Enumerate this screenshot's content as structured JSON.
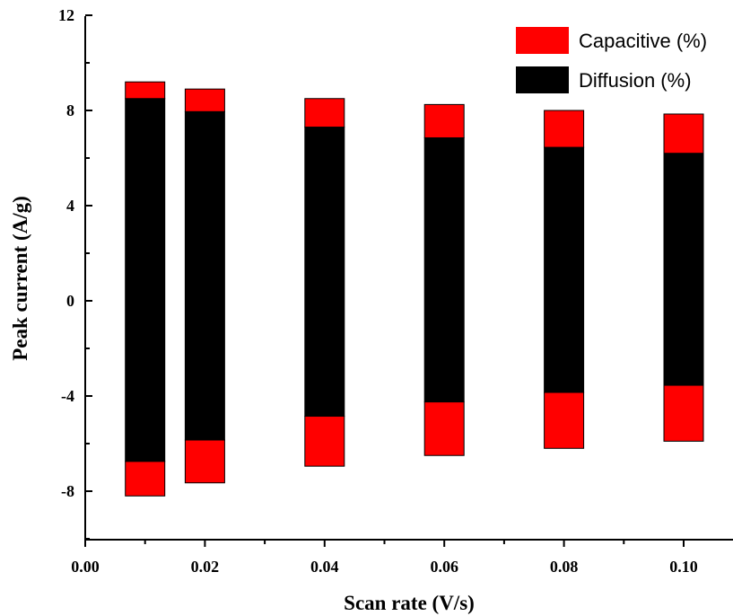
{
  "chart_data": {
    "type": "bar",
    "subtype": "stacked-floating",
    "xlabel": "Scan rate (V/s)",
    "ylabel": "Peak current (A/g)",
    "xlim": [
      0.0,
      0.11
    ],
    "ylim": [
      -10,
      12
    ],
    "x_ticks": [
      "0.00",
      "0.02",
      "0.04",
      "0.06",
      "0.08",
      "0.10"
    ],
    "y_ticks": [
      "12",
      "8",
      "4",
      "0",
      "-4",
      "-8"
    ],
    "x": [
      0.01,
      0.02,
      0.04,
      0.06,
      0.08,
      0.1
    ],
    "series": [
      {
        "name": "Capacitive (%)",
        "color": "#ff0000",
        "upper_segments": [
          [
            8.5,
            9.2
          ],
          [
            7.95,
            8.9
          ],
          [
            7.3,
            8.5
          ],
          [
            6.85,
            8.25
          ],
          [
            6.45,
            8.0
          ],
          [
            6.2,
            7.85
          ]
        ],
        "lower_segments": [
          [
            -8.2,
            -6.75
          ],
          [
            -7.65,
            -5.85
          ],
          [
            -6.95,
            -4.85
          ],
          [
            -6.5,
            -4.25
          ],
          [
            -6.2,
            -3.85
          ],
          [
            -5.9,
            -3.55
          ]
        ]
      },
      {
        "name": "Diffusion (%)",
        "color": "#000000",
        "segments": [
          [
            -6.75,
            8.5
          ],
          [
            -5.85,
            7.95
          ],
          [
            -4.85,
            7.3
          ],
          [
            -4.25,
            6.85
          ],
          [
            -3.85,
            6.45
          ],
          [
            -3.55,
            6.2
          ]
        ]
      }
    ],
    "legend_position": "top-right",
    "grid": false
  }
}
